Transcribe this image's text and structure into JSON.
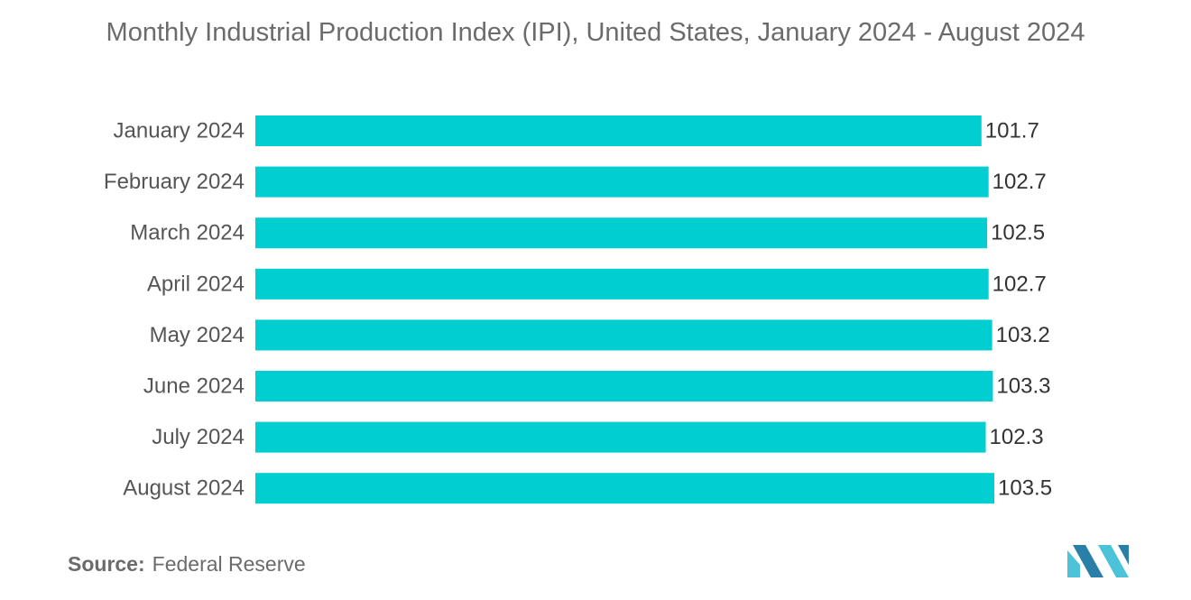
{
  "chart_data": {
    "type": "bar",
    "orientation": "horizontal",
    "title": "Monthly Industrial Production Index (IPI), United States, January 2024 - August 2024",
    "categories": [
      "January 2024",
      "February 2024",
      "March 2024",
      "April 2024",
      "May 2024",
      "June 2024",
      "July 2024",
      "August 2024"
    ],
    "values": [
      101.7,
      102.7,
      102.5,
      102.7,
      103.2,
      103.3,
      102.3,
      103.5
    ],
    "value_labels": [
      "101.7",
      "102.7",
      "102.5",
      "102.7",
      "103.2",
      "103.3",
      "102.3",
      "103.5"
    ],
    "xlim": [
      0,
      103.5
    ],
    "xlabel": "",
    "ylabel": "",
    "grid": false,
    "bar_color": "#00CED1"
  },
  "source": {
    "label": "Source:",
    "value": "Federal Reserve"
  },
  "colors": {
    "bar": "#00CED1",
    "logo_dark": "#2a7fa8",
    "logo_light": "#4cc3d8"
  },
  "logo": {
    "icon": "mordor-logo-icon"
  }
}
